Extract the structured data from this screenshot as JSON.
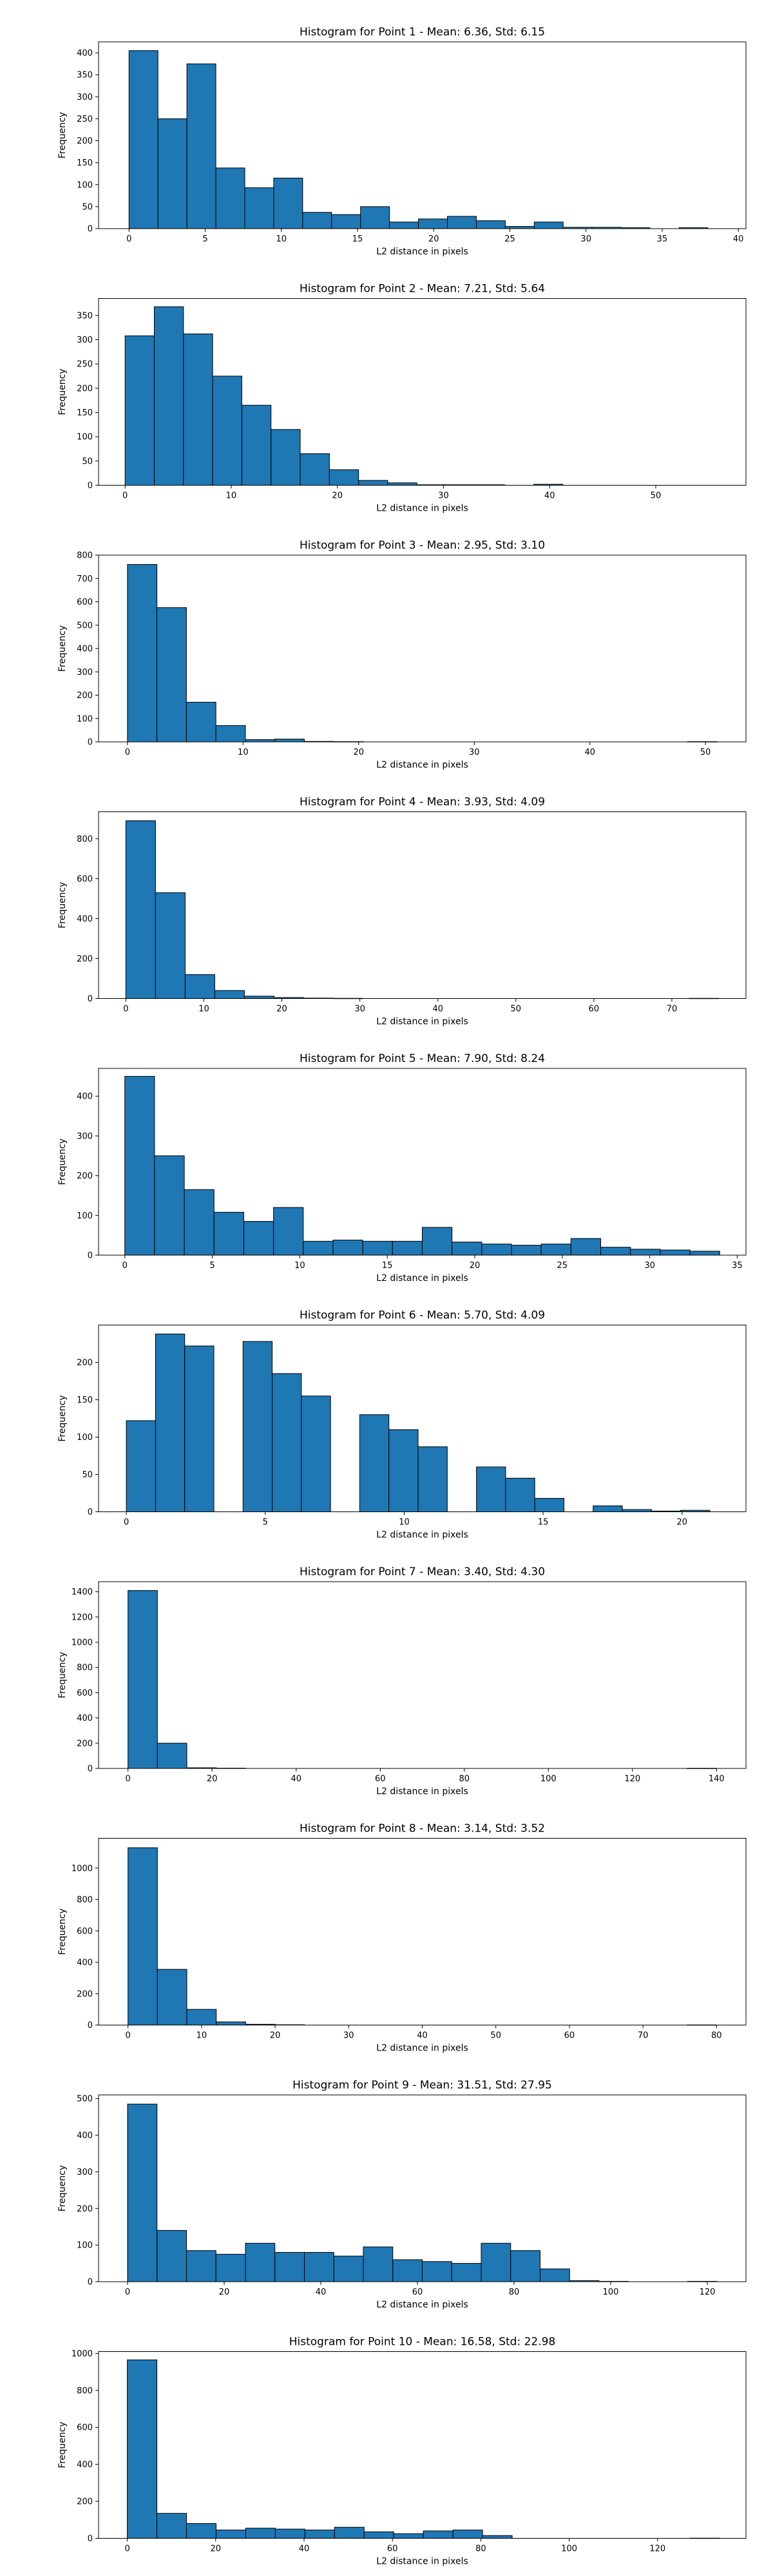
{
  "chart_data": [
    {
      "type": "bar",
      "title": "Histogram for Point 1 - Mean: 6.36, Std: 6.15",
      "xlabel": "L2 distance in pixels",
      "ylabel": "Frequency",
      "bin_start": 0,
      "bin_width": 1.9,
      "values": [
        405,
        250,
        375,
        138,
        93,
        115,
        37,
        32,
        50,
        15,
        22,
        28,
        18,
        5,
        15,
        3,
        3,
        2,
        0,
        2
      ],
      "xlim": [
        -2,
        40.5
      ],
      "ylim": [
        0,
        425
      ],
      "xticks": [
        0,
        5,
        10,
        15,
        20,
        25,
        30,
        35,
        40
      ],
      "yticks": [
        0,
        50,
        100,
        150,
        200,
        250,
        300,
        350,
        400
      ]
    },
    {
      "type": "bar",
      "title": "Histogram for Point 2 - Mean: 7.21, Std: 5.64",
      "xlabel": "L2 distance in pixels",
      "ylabel": "Frequency",
      "bin_start": 0,
      "bin_width": 2.75,
      "values": [
        308,
        368,
        312,
        225,
        165,
        115,
        65,
        32,
        10,
        5,
        1,
        1,
        1,
        0,
        2,
        0,
        0,
        0,
        0,
        0
      ],
      "xlim": [
        -2.5,
        58.5
      ],
      "ylim": [
        0,
        385
      ],
      "xticks": [
        0,
        10,
        20,
        30,
        40,
        50
      ],
      "yticks": [
        0,
        50,
        100,
        150,
        200,
        250,
        300,
        350
      ]
    },
    {
      "type": "bar",
      "title": "Histogram for Point 3 - Mean: 2.95, Std: 3.10",
      "xlabel": "L2 distance in pixels",
      "ylabel": "Frequency",
      "bin_start": 0,
      "bin_width": 2.55,
      "values": [
        760,
        575,
        170,
        70,
        10,
        12,
        2,
        1,
        0,
        0,
        0,
        0,
        0,
        0,
        0,
        0,
        0,
        0,
        0,
        1
      ],
      "xlim": [
        -2.5,
        53.5
      ],
      "ylim": [
        0,
        800
      ],
      "xticks": [
        0,
        10,
        20,
        30,
        40,
        50
      ],
      "yticks": [
        0,
        100,
        200,
        300,
        400,
        500,
        600,
        700,
        800
      ]
    },
    {
      "type": "bar",
      "title": "Histogram for Point 4 - Mean: 3.93, Std: 4.09",
      "xlabel": "L2 distance in pixels",
      "ylabel": "Frequency",
      "bin_start": 0,
      "bin_width": 3.8,
      "values": [
        890,
        530,
        120,
        40,
        12,
        5,
        2,
        1,
        0,
        0,
        0,
        0,
        0,
        0,
        0,
        0,
        0,
        0,
        0,
        1
      ],
      "xlim": [
        -3.5,
        79.5
      ],
      "ylim": [
        0,
        935
      ],
      "xticks": [
        0,
        10,
        20,
        30,
        40,
        50,
        60,
        70
      ],
      "yticks": [
        0,
        200,
        400,
        600,
        800
      ]
    },
    {
      "type": "bar",
      "title": "Histogram for Point 5 - Mean: 7.90, Std: 8.24",
      "xlabel": "L2 distance in pixels",
      "ylabel": "Frequency",
      "bin_start": 0,
      "bin_width": 1.7,
      "values": [
        450,
        250,
        165,
        108,
        85,
        120,
        35,
        38,
        35,
        35,
        70,
        33,
        28,
        25,
        28,
        42,
        20,
        15,
        13,
        10
      ],
      "xlim": [
        -1.5,
        35.5
      ],
      "ylim": [
        0,
        470
      ],
      "xticks": [
        0,
        5,
        10,
        15,
        20,
        25,
        30,
        35
      ],
      "yticks": [
        0,
        100,
        200,
        300,
        400
      ]
    },
    {
      "type": "bar",
      "title": "Histogram for Point 6 - Mean: 5.70, Std: 4.09",
      "xlabel": "L2 distance in pixels",
      "ylabel": "Frequency",
      "bin_start": 0,
      "bin_width": 1.05,
      "values": [
        122,
        238,
        222,
        0,
        228,
        185,
        155,
        0,
        130,
        110,
        87,
        0,
        60,
        45,
        18,
        0,
        8,
        3,
        1,
        2
      ],
      "xlim": [
        -1,
        22.3
      ],
      "ylim": [
        0,
        250
      ],
      "xticks": [
        0,
        5,
        10,
        15,
        20
      ],
      "yticks": [
        0,
        50,
        100,
        150,
        200
      ]
    },
    {
      "type": "bar",
      "title": "Histogram for Point 7 - Mean: 3.40, Std: 4.30",
      "xlabel": "L2 distance in pixels",
      "ylabel": "Frequency",
      "bin_start": 0,
      "bin_width": 7,
      "values": [
        1410,
        200,
        5,
        2,
        0,
        0,
        0,
        0,
        0,
        0,
        0,
        0,
        0,
        0,
        0,
        0,
        0,
        0,
        0,
        1
      ],
      "xlim": [
        -7,
        147
      ],
      "ylim": [
        0,
        1480
      ],
      "xticks": [
        0,
        20,
        40,
        60,
        80,
        100,
        120,
        140
      ],
      "yticks": [
        0,
        200,
        400,
        600,
        800,
        1000,
        1200,
        1400
      ]
    },
    {
      "type": "bar",
      "title": "Histogram for Point 8 - Mean: 3.14, Std: 3.52",
      "xlabel": "L2 distance in pixels",
      "ylabel": "Frequency",
      "bin_start": 0,
      "bin_width": 4,
      "values": [
        1130,
        355,
        100,
        20,
        5,
        2,
        0,
        0,
        0,
        0,
        0,
        0,
        0,
        0,
        0,
        0,
        0,
        0,
        0,
        1
      ],
      "xlim": [
        -4,
        84
      ],
      "ylim": [
        0,
        1190
      ],
      "xticks": [
        0,
        10,
        20,
        30,
        40,
        50,
        60,
        70,
        80
      ],
      "yticks": [
        0,
        200,
        400,
        600,
        800,
        1000
      ]
    },
    {
      "type": "bar",
      "title": "Histogram for Point 9 - Mean: 31.51, Std: 27.95",
      "xlabel": "L2 distance in pixels",
      "ylabel": "Frequency",
      "bin_start": 0,
      "bin_width": 6.1,
      "values": [
        485,
        140,
        85,
        75,
        105,
        80,
        80,
        70,
        95,
        60,
        55,
        50,
        105,
        85,
        35,
        3,
        1,
        0,
        0,
        1
      ],
      "xlim": [
        -6,
        128
      ],
      "ylim": [
        0,
        510
      ],
      "xticks": [
        0,
        20,
        40,
        60,
        80,
        100,
        120
      ],
      "yticks": [
        0,
        100,
        200,
        300,
        400,
        500
      ]
    },
    {
      "type": "bar",
      "title": "Histogram for Point 10 - Mean: 16.58, Std: 22.98",
      "xlabel": "L2 distance in pixels",
      "ylabel": "Frequency",
      "bin_start": 0,
      "bin_width": 6.7,
      "values": [
        965,
        135,
        80,
        45,
        55,
        50,
        45,
        60,
        35,
        25,
        40,
        45,
        15,
        0,
        0,
        0,
        0,
        0,
        0,
        1
      ],
      "xlim": [
        -6.5,
        140
      ],
      "ylim": [
        0,
        1010
      ],
      "xticks": [
        0,
        20,
        40,
        60,
        80,
        100,
        120
      ],
      "yticks": [
        0,
        200,
        400,
        600,
        800,
        1000
      ]
    }
  ]
}
